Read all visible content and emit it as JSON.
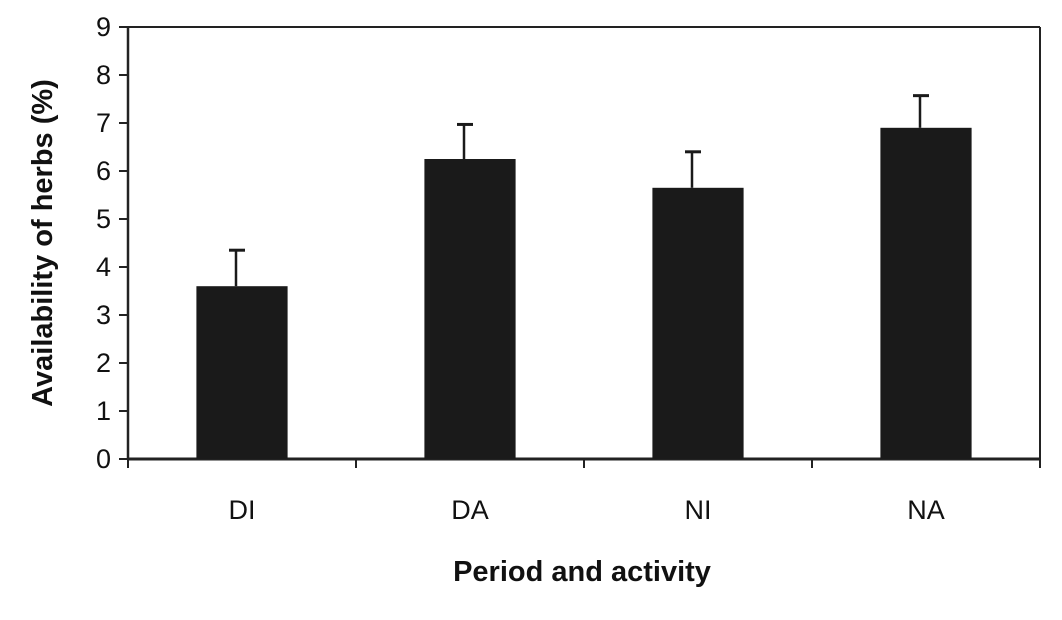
{
  "chart_data": {
    "type": "bar",
    "categories": [
      "DI",
      "DA",
      "NI",
      "NA"
    ],
    "values": [
      3.6,
      6.25,
      5.65,
      6.9
    ],
    "error_upper": [
      0.75,
      0.72,
      0.75,
      0.67
    ],
    "xlabel": "Period and activity",
    "ylabel": "Availability of herbs (%)",
    "ylim": [
      0,
      9
    ],
    "yticks": [
      0,
      1,
      2,
      3,
      4,
      5,
      6,
      7,
      8,
      9
    ],
    "grid": false,
    "legend": "none",
    "colors": {
      "bar": "#1a1a1a",
      "axis": "#222222",
      "background": "#ffffff"
    }
  }
}
